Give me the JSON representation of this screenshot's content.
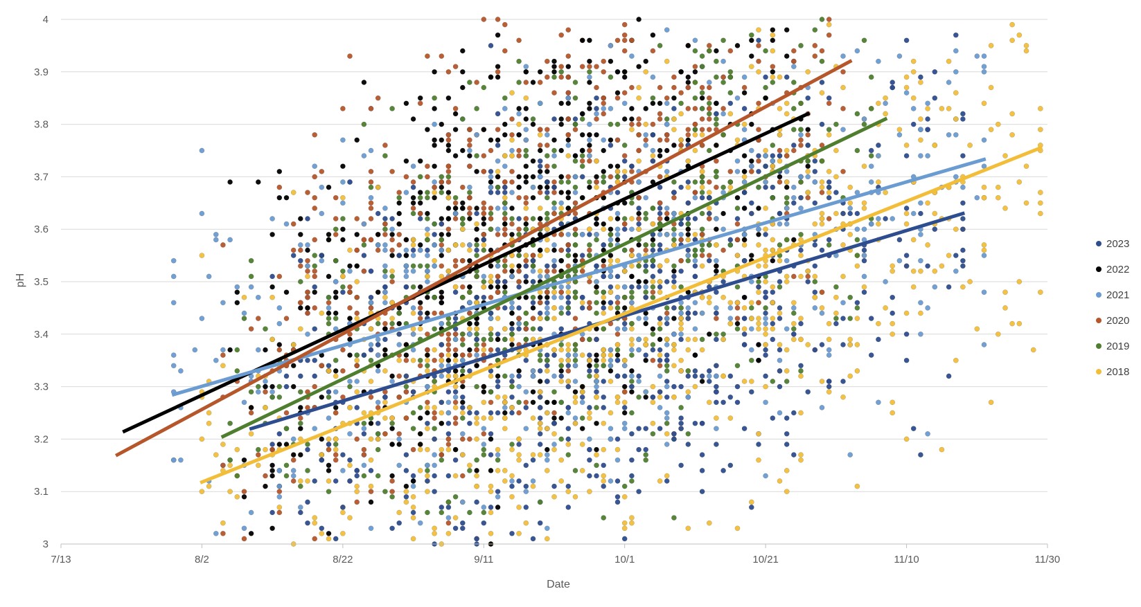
{
  "chart_data": {
    "type": "scatter",
    "title": "",
    "xlabel": "Date",
    "ylabel": "pH",
    "x_axis": {
      "scale": "date",
      "year": 2023,
      "range": [
        "2023-07-13",
        "2023-11-30"
      ],
      "ticks": [
        "2023-07-13",
        "2023-08-02",
        "2023-08-22",
        "2023-09-11",
        "2023-10-01",
        "2023-10-21",
        "2023-11-10",
        "2023-11-30"
      ],
      "tick_labels": [
        "7/13",
        "8/2",
        "8/22",
        "9/11",
        "10/1",
        "10/21",
        "11/10",
        "11/30"
      ]
    },
    "y_axis": {
      "range": [
        3,
        4
      ],
      "ticks": [
        3,
        3.1,
        3.2,
        3.3,
        3.4,
        3.5,
        3.6,
        3.7,
        3.8,
        3.9,
        4
      ],
      "tick_labels": [
        "3",
        "3.1",
        "3.2",
        "3.3",
        "3.4",
        "3.5",
        "3.6",
        "3.7",
        "3.8",
        "3.9",
        "4"
      ]
    },
    "grid": "horizontal",
    "legend_position": "right",
    "series": [
      {
        "name": "2023",
        "color": "#2E4D8E",
        "cloud": {
          "x_start": "2023-08-12",
          "x_end": "2023-11-18",
          "y_min": 3.0,
          "y_max": 4.0,
          "count": 700
        },
        "trendline": {
          "points": [
            [
              "2023-08-09",
              3.22
            ],
            [
              "2023-11-18",
              3.63
            ]
          ]
        }
      },
      {
        "name": "2022",
        "color": "#000000",
        "cloud": {
          "x_start": "2023-08-06",
          "x_end": "2023-10-27",
          "y_min": 3.0,
          "y_max": 4.0,
          "count": 600
        },
        "trendline": {
          "points": [
            [
              "2023-07-22",
              3.215
            ],
            [
              "2023-10-27",
              3.82
            ]
          ]
        }
      },
      {
        "name": "2021",
        "color": "#6A9BD1",
        "cloud": {
          "x_start": "2023-07-29",
          "x_end": "2023-11-21",
          "y_min": 3.02,
          "y_max": 3.98,
          "count": 650
        },
        "trendline": {
          "points": [
            [
              "2023-07-29",
              3.285
            ],
            [
              "2023-11-21",
              3.733
            ]
          ]
        }
      },
      {
        "name": "2020",
        "color": "#B5562B",
        "cloud": {
          "x_start": "2023-08-05",
          "x_end": "2023-11-01",
          "y_min": 3.0,
          "y_max": 4.0,
          "count": 650
        },
        "trendline": {
          "points": [
            [
              "2023-07-21",
              3.17
            ],
            [
              "2023-11-02",
              3.92
            ]
          ]
        }
      },
      {
        "name": "2019",
        "color": "#4E7E2E",
        "cloud": {
          "x_start": "2023-08-06",
          "x_end": "2023-11-05",
          "y_min": 3.05,
          "y_max": 4.0,
          "count": 600
        },
        "trendline": {
          "points": [
            [
              "2023-08-05",
              3.205
            ],
            [
              "2023-11-07",
              3.81
            ]
          ]
        }
      },
      {
        "name": "2018",
        "color": "#F2BE3A",
        "cloud": {
          "x_start": "2023-08-02",
          "x_end": "2023-11-29",
          "y_min": 3.0,
          "y_max": 4.0,
          "count": 900
        },
        "trendline": {
          "points": [
            [
              "2023-08-02",
              3.118
            ],
            [
              "2023-11-29",
              3.755
            ]
          ]
        }
      }
    ]
  }
}
